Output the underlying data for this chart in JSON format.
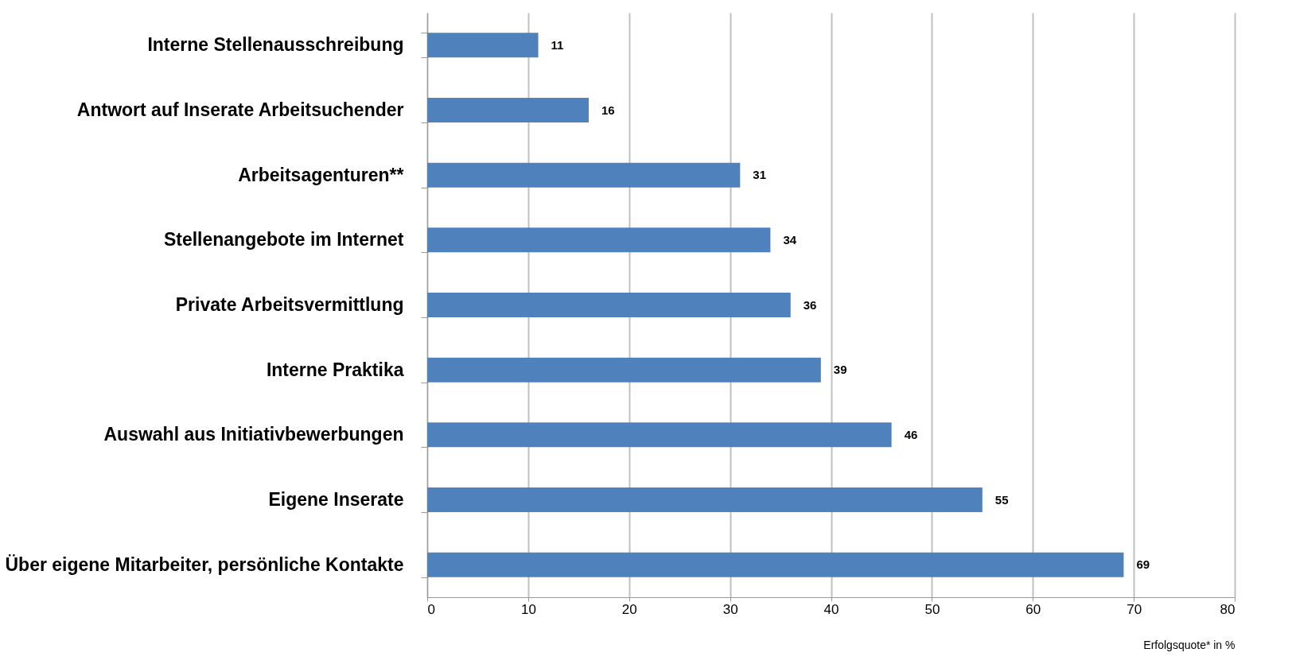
{
  "chart_data": {
    "type": "bar",
    "orientation": "horizontal",
    "xlabel": "Erfolgsquote* in %",
    "categories": [
      "Interne Stellenausschreibung",
      "Antwort auf Inserate Arbeitsuchender",
      "Arbeitsagenturen**",
      "Stellenangebote im Internet",
      "Private Arbeitsvermittlung",
      "Interne Praktika",
      "Auswahl aus Initiativbewerbungen",
      "Eigene Inserate",
      "Über eigene Mitarbeiter, persönliche Kontakte"
    ],
    "values": [
      11,
      16,
      31,
      34,
      36,
      39,
      46,
      55,
      69
    ],
    "color": "#4f81bd",
    "xlim": [
      0,
      80
    ],
    "xticks": [
      0,
      10,
      20,
      30,
      40,
      50,
      60,
      70,
      80
    ],
    "grid": "x",
    "data_labels": true
  }
}
